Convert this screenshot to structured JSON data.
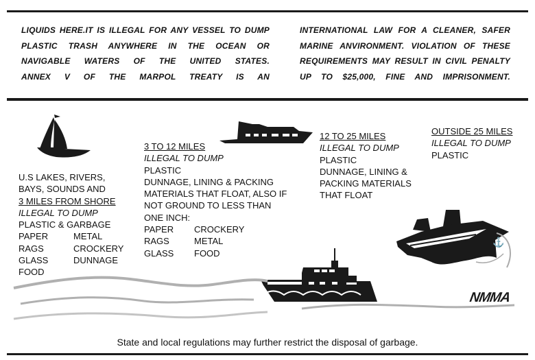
{
  "notice": {
    "left_lines": [
      "LIQUIDS HERE.IT IS ILLEGAL FOR ANY VESSEL TO DUMP",
      "PLASTIC TRASH ANYWHERE IN THE OCEAN OR",
      "NAVIGABLE WATERS OF THE UNITED STATES.",
      "ANNEX V OF THE MARPOL TREATY IS AN"
    ],
    "right_lines": [
      "INTERNATIONAL LAW FOR A CLEANER, SAFER",
      "MARINE ANVIRONMENT. VIOLATION OF THESE",
      "REQUIREMENTS MAY RESULT IN CIVIL PENALTY",
      "UP TO $25,000, FINE AND IMPRISONMENT."
    ]
  },
  "zones": [
    {
      "heading_lines": [
        "U.S LAKES, RIVERS,",
        "BAYS, SOUNDS AND"
      ],
      "heading_underlined": "3 MILES FROM SHORE",
      "status": "ILLEGAL TO DUMP",
      "items": [
        "PLASTIC & GARBAGE"
      ],
      "pairs": [
        [
          "PAPER",
          "METAL"
        ],
        [
          "RAGS",
          "CROCKERY"
        ],
        [
          "GLASS",
          "DUNNAGE"
        ],
        [
          "FOOD",
          ""
        ]
      ]
    },
    {
      "heading_underlined": "3 TO 12 MILES",
      "status": "ILLEGAL TO DUMP",
      "items": [
        "PLASTIC",
        "DUNNAGE, LINING & PACKING",
        "MATERIALS THAT FLOAT, ALSO IF",
        "NOT GROUND TO LESS THAN",
        "ONE INCH:"
      ],
      "pairs": [
        [
          "PAPER",
          "CROCKERY"
        ],
        [
          "RAGS",
          "METAL"
        ],
        [
          "GLASS",
          "FOOD"
        ]
      ]
    },
    {
      "heading_underlined": "12 TO 25 MILES",
      "status": "ILLEGAL TO DUMP",
      "items": [
        "PLASTIC",
        "DUNNAGE, LINING &",
        "PACKING MATERIALS",
        "THAT FLOAT"
      ]
    },
    {
      "heading_underlined": "OUTSIDE 25 MILES",
      "status": "ILLEGAL TO DUMP",
      "items": [
        "PLASTIC"
      ]
    }
  ],
  "logo": "NMMA",
  "footer": "State and local regulations may further restrict the disposal of garbage.",
  "colors": {
    "ink": "#1a1a1a",
    "wave": "#b0b0b0"
  }
}
